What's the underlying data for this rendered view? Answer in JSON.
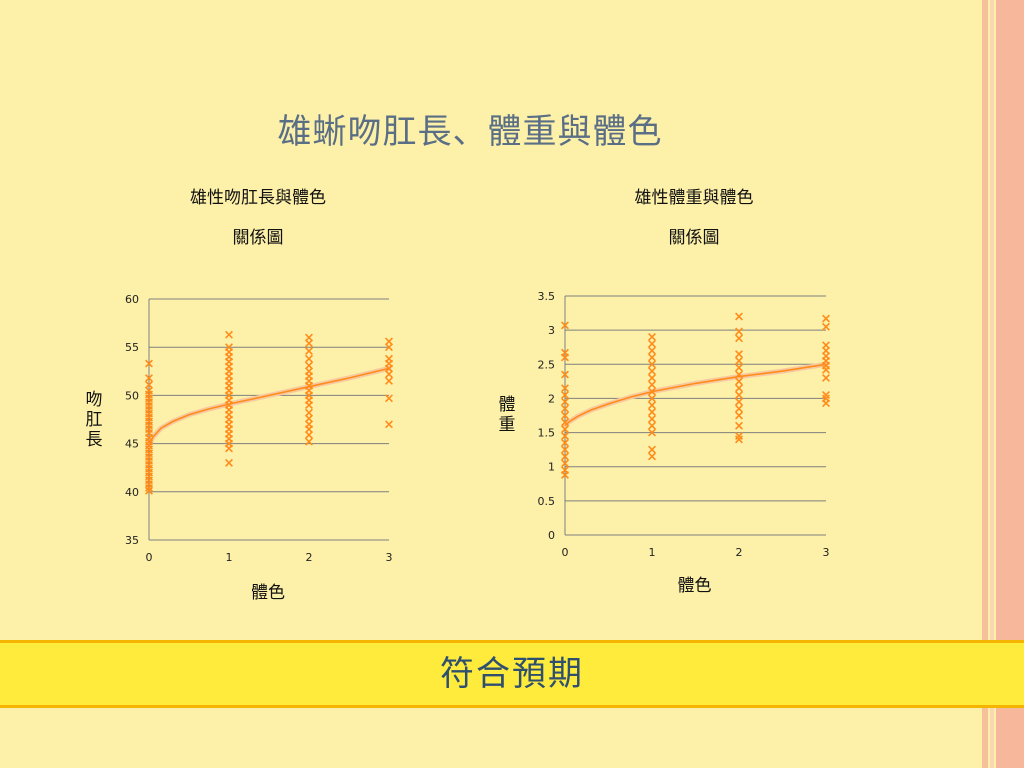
{
  "slide": {
    "title": "雄蜥吻肛長、體重與體色",
    "banner": "符合預期"
  },
  "colors": {
    "background": "#fdf0a8",
    "marker": "#ff8c1a",
    "trendline": "#ff8c1a",
    "banner_fill": "#ffeb3b",
    "title_text": "#5a6f86",
    "banner_text": "#2f4f6f"
  },
  "chart_data": [
    {
      "type": "scatter",
      "title_line1": "雄性吻肛長與體色",
      "title_line2": "關係圖",
      "xlabel": "體色",
      "ylabel": "吻肛長",
      "xlim": [
        0,
        3
      ],
      "ylim": [
        35,
        60
      ],
      "xticks": [
        "0",
        "1",
        "2",
        "3"
      ],
      "yticks": [
        "35",
        "40",
        "45",
        "50",
        "55",
        "60"
      ],
      "grid": "horizontal",
      "trendline": "logarithmic",
      "trend": [
        [
          0,
          44.8
        ],
        [
          0.05,
          45.7
        ],
        [
          0.15,
          46.6
        ],
        [
          0.3,
          47.3
        ],
        [
          0.5,
          48.0
        ],
        [
          0.75,
          48.6
        ],
        [
          1,
          49.1
        ],
        [
          1.5,
          50.0
        ],
        [
          2,
          50.9
        ],
        [
          2.5,
          51.8
        ],
        [
          3,
          52.8
        ]
      ],
      "points_by_x": [
        {
          "x": 0,
          "y": [
            53.3,
            51.8,
            51.1,
            50.5,
            50.1,
            49.7,
            49.3,
            48.9,
            48.5,
            48.1,
            47.7,
            47.3,
            46.9,
            46.5,
            46.1,
            45.6,
            45.2,
            44.8,
            44.4,
            44.0,
            43.6,
            43.2,
            42.8,
            42.4,
            42.0,
            41.6,
            41.2,
            40.8,
            40.4,
            40.1
          ]
        },
        {
          "x": 1,
          "y": [
            56.3,
            55.0,
            54.5,
            54.0,
            53.5,
            53.0,
            52.5,
            52.0,
            51.5,
            51.0,
            50.5,
            50.0,
            49.5,
            49.0,
            48.5,
            48.0,
            47.5,
            47.0,
            46.5,
            46.0,
            45.5,
            45.0,
            44.5,
            43.0
          ]
        },
        {
          "x": 2,
          "y": [
            56.0,
            55.4,
            54.6,
            53.8,
            53.1,
            52.5,
            52.0,
            51.5,
            51.0,
            50.5,
            50.0,
            49.5,
            49.0,
            48.2,
            47.6,
            47.0,
            46.5,
            45.9,
            45.2
          ]
        },
        {
          "x": 3,
          "y": [
            55.6,
            55.0,
            53.8,
            53.3,
            52.8,
            52.2,
            51.5,
            49.7,
            47.0
          ]
        }
      ]
    },
    {
      "type": "scatter",
      "title_line1": "雄性體重與體色",
      "title_line2": "關係圖",
      "xlabel": "體色",
      "ylabel": "體重",
      "xlim": [
        0,
        3
      ],
      "ylim": [
        0,
        3.5
      ],
      "xticks": [
        "0",
        "1",
        "2",
        "3"
      ],
      "yticks": [
        "0",
        "0.5",
        "1",
        "1.5",
        "2",
        "2.5",
        "3",
        "3.5"
      ],
      "grid": "horizontal",
      "trendline": "logarithmic",
      "trend": [
        [
          0,
          1.6
        ],
        [
          0.05,
          1.66
        ],
        [
          0.15,
          1.74
        ],
        [
          0.3,
          1.83
        ],
        [
          0.5,
          1.92
        ],
        [
          0.75,
          2.02
        ],
        [
          1,
          2.1
        ],
        [
          1.5,
          2.22
        ],
        [
          2,
          2.32
        ],
        [
          2.5,
          2.4
        ],
        [
          3,
          2.5
        ]
      ],
      "points_by_x": [
        {
          "x": 0,
          "y": [
            3.07,
            2.67,
            2.6,
            2.35,
            2.15,
            2.05,
            1.95,
            1.85,
            1.75,
            1.65,
            1.55,
            1.45,
            1.35,
            1.25,
            1.15,
            1.05,
            0.95,
            0.88
          ]
        },
        {
          "x": 1,
          "y": [
            2.9,
            2.8,
            2.7,
            2.6,
            2.5,
            2.4,
            2.3,
            2.2,
            2.1,
            2.0,
            1.9,
            1.8,
            1.7,
            1.6,
            1.5,
            1.25,
            1.15
          ]
        },
        {
          "x": 2,
          "y": [
            3.2,
            2.98,
            2.88,
            2.65,
            2.55,
            2.45,
            2.35,
            2.25,
            2.15,
            2.05,
            1.95,
            1.85,
            1.75,
            1.6,
            1.45,
            1.4
          ]
        },
        {
          "x": 3,
          "y": [
            3.17,
            3.05,
            2.78,
            2.7,
            2.62,
            2.55,
            2.48,
            2.42,
            2.3,
            2.05,
            2.0,
            1.93
          ]
        }
      ]
    }
  ]
}
